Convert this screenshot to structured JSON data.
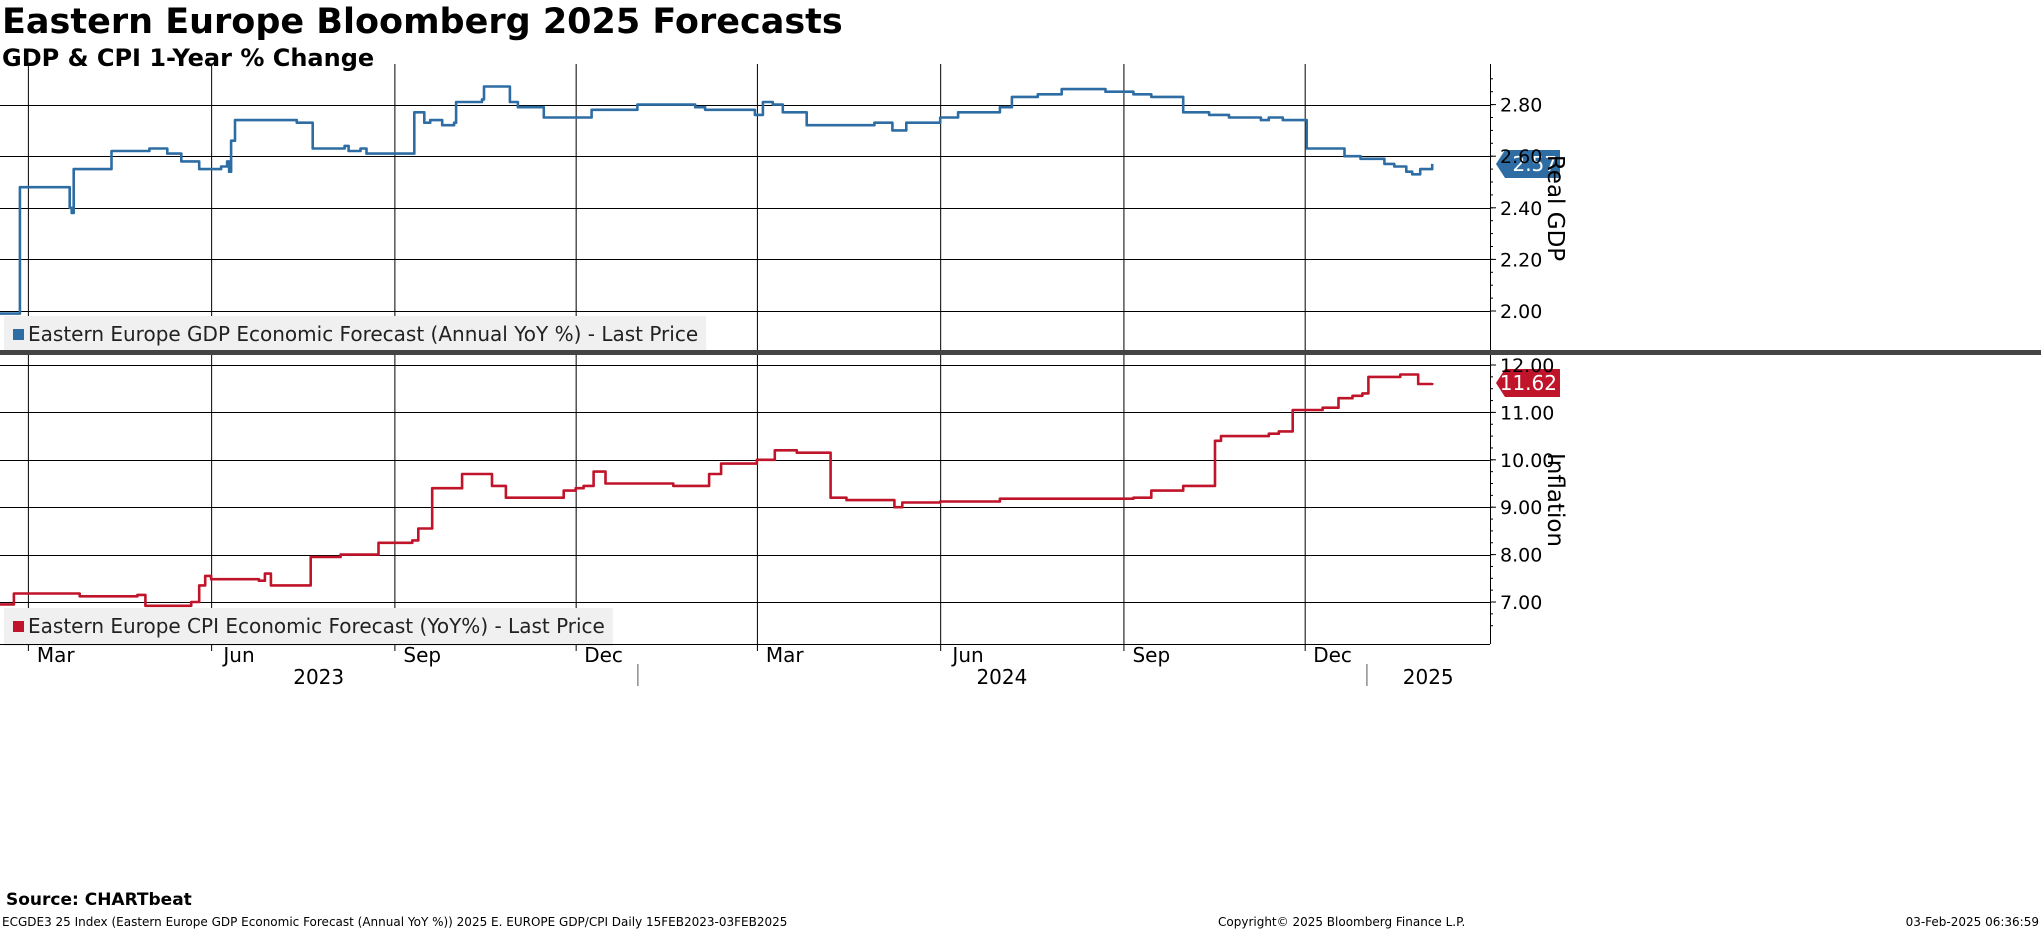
{
  "header": {
    "title": "Eastern Europe Bloomberg 2025 Forecasts",
    "subtitle": "GDP & CPI 1-Year % Change"
  },
  "footer": {
    "source": "Source: CHARTbeat",
    "left": "ECGDE3 25 Index (Eastern Europe GDP Economic Forecast (Annual YoY %)) 2025 E. EUROPE GDP/CPI  Daily 15FEB2023-03FEB2025",
    "center": "Copyright© 2025 Bloomberg Finance L.P.",
    "right": "03-Feb-2025 06:36:59"
  },
  "colors": {
    "gdp": "#2e6da4",
    "cpi": "#c0142a",
    "grid": "#000000",
    "divider": "#444444"
  },
  "chart_data": [
    {
      "type": "line",
      "date_range": [
        "2023-02-15",
        "2025-02-03"
      ],
      "x_month_labels": [
        "Mar",
        "Jun",
        "Sep",
        "Dec",
        "Mar",
        "Jun",
        "Sep",
        "Dec"
      ],
      "x_year_labels": [
        "2023",
        "2024",
        "2025"
      ],
      "ylabel": "Real GDP",
      "ylim": [
        1.88,
        2.98
      ],
      "yticks": [
        "2.00",
        "2.20",
        "2.40",
        "2.60",
        "2.80"
      ],
      "last_value": "2.57",
      "series": [
        {
          "name": "Eastern Europe GDP Economic Forecast (Annual YoY %) - Last Price",
          "x": [
            "2023-02-15",
            "2023-02-24",
            "2023-02-25",
            "2023-03-20",
            "2023-03-22",
            "2023-03-23",
            "2023-03-24",
            "2023-04-11",
            "2023-04-12",
            "2023-05-01",
            "2023-05-10",
            "2023-05-17",
            "2023-05-26",
            "2023-06-06",
            "2023-06-09",
            "2023-06-10",
            "2023-06-11",
            "2023-06-13",
            "2023-07-14",
            "2023-07-22",
            "2023-08-07",
            "2023-08-09",
            "2023-08-15",
            "2023-08-18",
            "2023-08-23",
            "2023-09-11",
            "2023-09-16",
            "2023-09-19",
            "2023-09-25",
            "2023-10-01",
            "2023-10-02",
            "2023-10-15",
            "2023-10-16",
            "2023-10-29",
            "2023-11-02",
            "2023-11-15",
            "2023-11-21",
            "2023-12-09",
            "2023-12-15",
            "2024-01-01",
            "2024-01-30",
            "2024-02-04",
            "2024-02-29",
            "2024-03-04",
            "2024-03-09",
            "2024-03-14",
            "2024-03-26",
            "2024-04-29",
            "2024-05-05",
            "2024-05-08",
            "2024-05-15",
            "2024-06-01",
            "2024-06-10",
            "2024-07-01",
            "2024-07-07",
            "2024-07-20",
            "2024-08-01",
            "2024-08-23",
            "2024-08-30",
            "2024-09-06",
            "2024-09-15",
            "2024-10-01",
            "2024-10-14",
            "2024-10-24",
            "2024-11-09",
            "2024-11-13",
            "2024-11-20",
            "2024-12-02",
            "2024-12-21",
            "2024-12-29",
            "2025-01-10",
            "2025-01-15",
            "2025-01-21",
            "2025-01-24",
            "2025-01-28",
            "2025-02-03"
          ],
          "y": [
            1.99,
            1.99,
            2.48,
            2.48,
            2.4,
            2.38,
            2.55,
            2.55,
            2.62,
            2.63,
            2.61,
            2.58,
            2.55,
            2.56,
            2.58,
            2.54,
            2.66,
            2.74,
            2.73,
            2.63,
            2.64,
            2.62,
            2.63,
            2.61,
            2.61,
            2.77,
            2.73,
            2.74,
            2.72,
            2.73,
            2.81,
            2.82,
            2.87,
            2.81,
            2.79,
            2.75,
            2.75,
            2.78,
            2.78,
            2.8,
            2.79,
            2.78,
            2.76,
            2.81,
            2.8,
            2.77,
            2.72,
            2.73,
            2.73,
            2.7,
            2.73,
            2.75,
            2.77,
            2.79,
            2.83,
            2.84,
            2.86,
            2.85,
            2.85,
            2.84,
            2.83,
            2.77,
            2.76,
            2.75,
            2.74,
            2.75,
            2.74,
            2.63,
            2.6,
            2.59,
            2.57,
            2.56,
            2.54,
            2.53,
            2.55,
            2.57
          ]
        }
      ]
    },
    {
      "type": "line",
      "date_range": [
        "2023-02-15",
        "2025-02-03"
      ],
      "ylabel": "Inflation",
      "ylim": [
        6.2,
        12.2
      ],
      "yticks": [
        "7.00",
        "8.00",
        "9.00",
        "10.00",
        "11.00",
        "12.00"
      ],
      "last_value": "11.62",
      "series": [
        {
          "name": "Eastern Europe CPI Economic Forecast (YoY%) - Last Price",
          "x": [
            "2023-02-15",
            "2023-02-20",
            "2023-02-22",
            "2023-03-24",
            "2023-03-27",
            "2023-04-25",
            "2023-04-29",
            "2023-05-22",
            "2023-05-26",
            "2023-05-29",
            "2023-06-01",
            "2023-06-25",
            "2023-06-28",
            "2023-07-01",
            "2023-07-19",
            "2023-07-21",
            "2023-08-05",
            "2023-08-24",
            "2023-09-10",
            "2023-09-13",
            "2023-09-16",
            "2023-09-20",
            "2023-10-05",
            "2023-10-20",
            "2023-10-23",
            "2023-10-27",
            "2023-11-01",
            "2023-11-25",
            "2023-12-01",
            "2023-12-05",
            "2023-12-10",
            "2023-12-16",
            "2024-01-01",
            "2024-01-19",
            "2024-01-23",
            "2024-02-06",
            "2024-02-10",
            "2024-02-12",
            "2024-02-15",
            "2024-03-01",
            "2024-03-05",
            "2024-03-10",
            "2024-03-15",
            "2024-03-21",
            "2024-03-24",
            "2024-04-07",
            "2024-04-15",
            "2024-05-09",
            "2024-05-13",
            "2024-06-01",
            "2024-07-01",
            "2024-08-01",
            "2024-09-06",
            "2024-09-15",
            "2024-10-01",
            "2024-10-17",
            "2024-10-20",
            "2024-11-13",
            "2024-11-18",
            "2024-11-25",
            "2024-12-10",
            "2024-12-18",
            "2024-12-25",
            "2024-12-30",
            "2025-01-02",
            "2025-01-12",
            "2025-01-18",
            "2025-01-27",
            "2025-02-03"
          ],
          "y": [
            6.95,
            6.95,
            7.18,
            7.18,
            7.12,
            7.15,
            6.92,
            7.0,
            7.35,
            7.55,
            7.48,
            7.45,
            7.6,
            7.35,
            7.35,
            7.95,
            8.0,
            8.25,
            8.3,
            8.55,
            8.55,
            9.4,
            9.7,
            9.45,
            9.45,
            9.2,
            9.2,
            9.35,
            9.4,
            9.45,
            9.75,
            9.5,
            9.5,
            9.45,
            9.45,
            9.7,
            9.7,
            9.92,
            9.92,
            10.0,
            10.0,
            10.2,
            10.2,
            10.15,
            10.15,
            9.2,
            9.15,
            9.0,
            9.1,
            9.12,
            9.18,
            9.18,
            9.2,
            9.35,
            9.45,
            10.4,
            10.5,
            10.55,
            10.6,
            11.05,
            11.1,
            11.3,
            11.35,
            11.4,
            11.75,
            11.75,
            11.8,
            11.6,
            11.62
          ]
        }
      ]
    }
  ]
}
